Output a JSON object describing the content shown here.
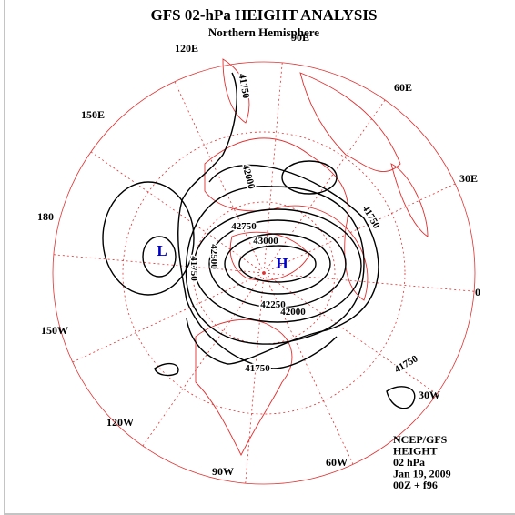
{
  "header": {
    "title": "GFS 02-hPa HEIGHT ANALYSIS",
    "subtitle": "Northern Hemisphere"
  },
  "longitude_labels": [
    "90E",
    "60E",
    "30E",
    "0",
    "30W",
    "60W",
    "90W",
    "120W",
    "150W",
    "180",
    "150E",
    "120E"
  ],
  "contour_labels": [
    "41750",
    "42000",
    "41750",
    "42750",
    "43000",
    "42500",
    "41750",
    "42250",
    "42000",
    "41750",
    "41750"
  ],
  "centers": [
    "L",
    "H"
  ],
  "footer": [
    "NCEP/GFS",
    "HEIGHT",
    "02 hPa",
    "Jan 19, 2009",
    "00Z + f96"
  ]
}
